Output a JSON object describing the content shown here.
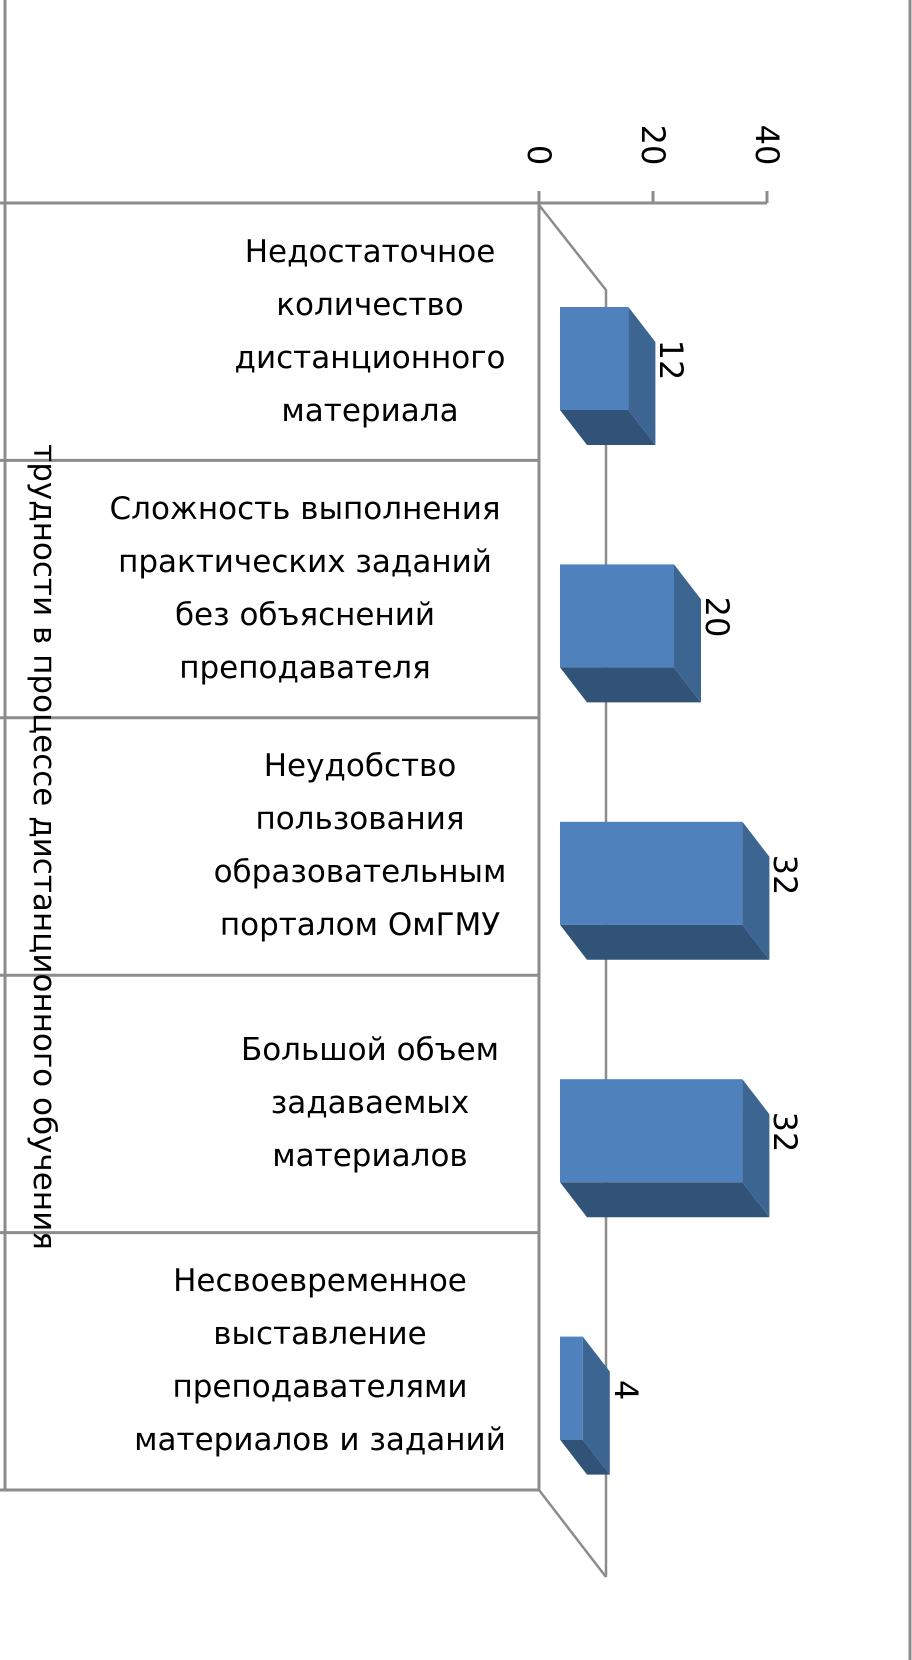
{
  "chart_data": {
    "type": "bar",
    "orientation": "horizontal-3d",
    "ylabel": "трудности в процессе дистанционного обучения",
    "categories": [
      "Недостаточное количество дистанционного материала",
      "Сложность выполнения практических заданий без объяснений преподавателя",
      "Неудобство пользования образовательным порталом ОмГМУ",
      "Большой объем задаваемых материалов",
      "Несвоевременное выставление преподавателями материалов и заданий"
    ],
    "values": [
      12,
      20,
      32,
      32,
      4
    ],
    "data_labels": [
      "12",
      "20",
      "32",
      "32",
      "4"
    ],
    "value_axis": {
      "range": [
        0,
        40
      ],
      "ticks": [
        "0",
        "20",
        "40"
      ]
    },
    "grid": false,
    "legend": "none",
    "colors": {
      "front": "#4F81BD",
      "side": "#3D6591",
      "bottom": "#325378",
      "axis": "#8C8C8C"
    }
  }
}
